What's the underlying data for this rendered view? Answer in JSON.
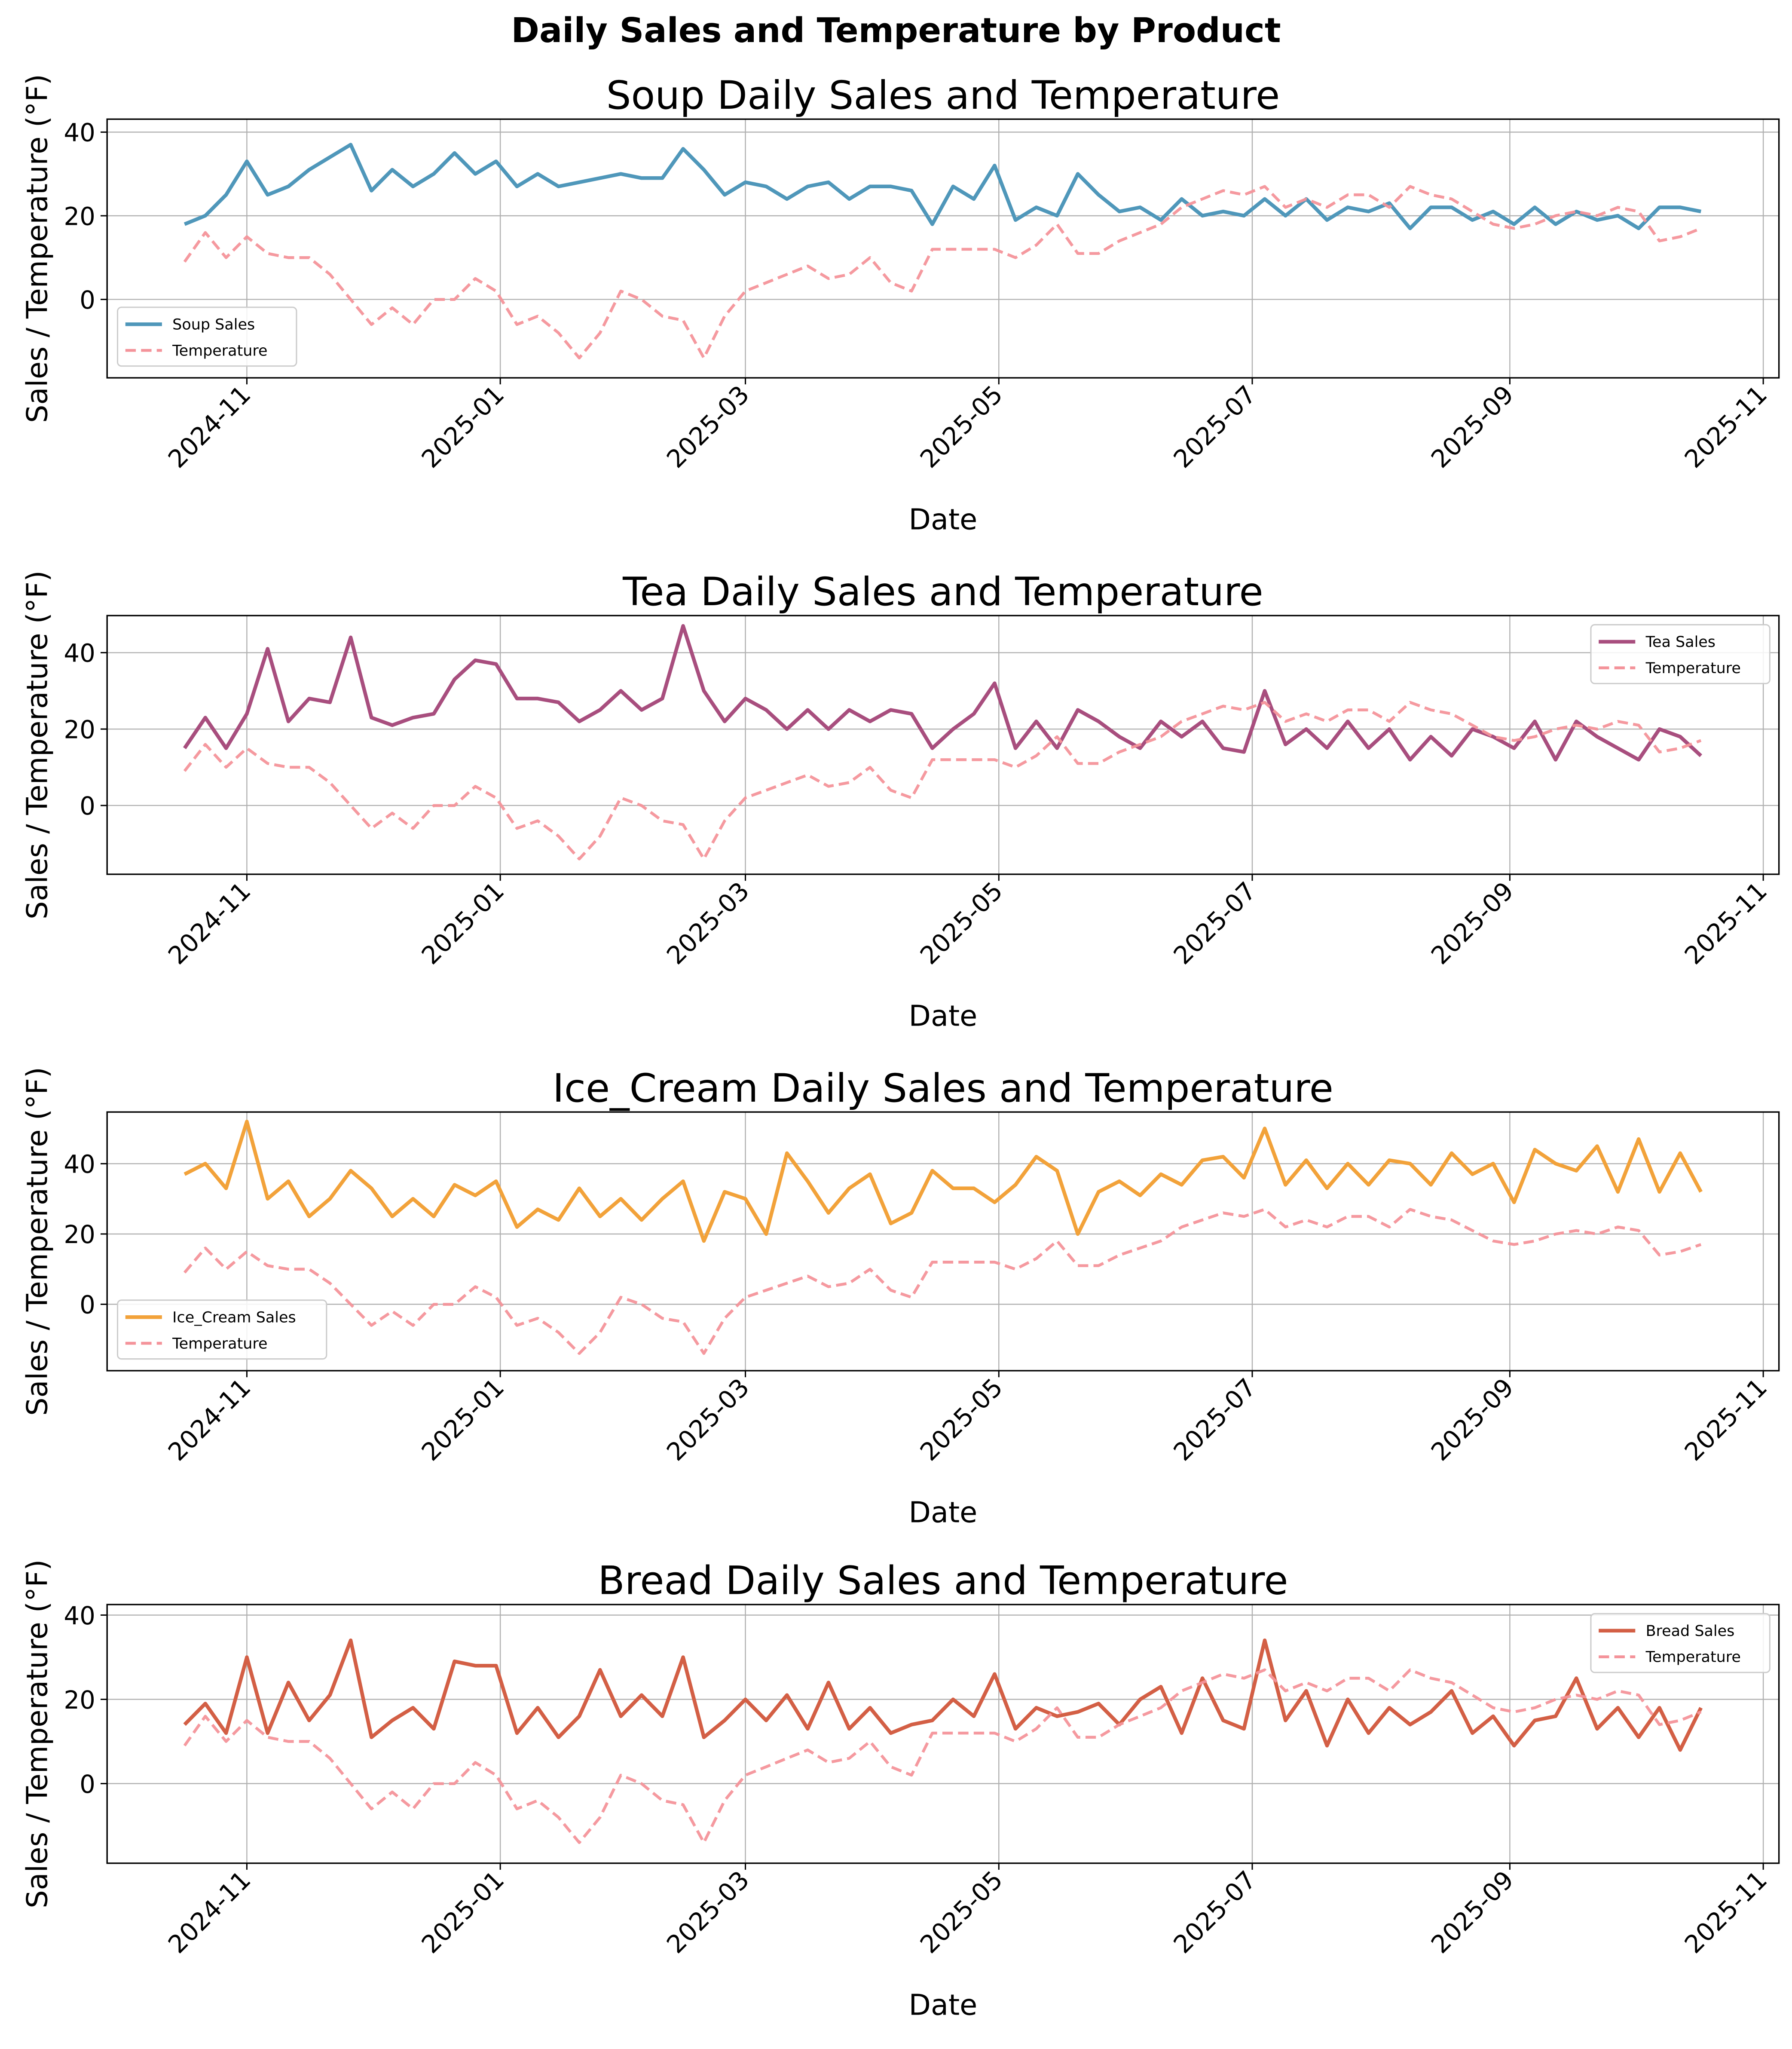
{
  "title": "Daily Sales and Temperature by Product",
  "chart_data": [
    {
      "type": "line",
      "title": "Soup Daily Sales and Temperature",
      "xlabel": "Date",
      "ylabel": "Sales / Temperature (°F)",
      "ylim": [
        -18.75,
        43.1
      ],
      "yticks": [
        0,
        20,
        40
      ],
      "xticks": [
        "2024-11",
        "2025-01",
        "2025-03",
        "2025-05",
        "2025-07",
        "2025-09",
        "2025-11"
      ],
      "grid": true,
      "legend": "lower left",
      "series": [
        {
          "name": "Soup Sales",
          "color": "#4f97ba",
          "style": "solid",
          "values": [
            18,
            20,
            25,
            33,
            25,
            27,
            31,
            34,
            37,
            26,
            31,
            27,
            30,
            35,
            30,
            33,
            27,
            30,
            27,
            28,
            29,
            30,
            29,
            29,
            36,
            31,
            25,
            28,
            27,
            24,
            27,
            28,
            24,
            27,
            27,
            26,
            18,
            27,
            24,
            32,
            19,
            22,
            20,
            30,
            25,
            21,
            22,
            19,
            24,
            20,
            21,
            20,
            24,
            20,
            24,
            19,
            22,
            21,
            23,
            17,
            22,
            22,
            19,
            21,
            18,
            22,
            18,
            21,
            19,
            20,
            17,
            22,
            22,
            21
          ]
        },
        {
          "name": "Temperature",
          "color": "#f4939a",
          "style": "dashed",
          "ref": "temperature"
        }
      ]
    },
    {
      "type": "line",
      "title": "Tea Daily Sales and Temperature",
      "xlabel": "Date",
      "ylabel": "Sales / Temperature (°F)",
      "ylim": [
        -18,
        49.7
      ],
      "yticks": [
        0,
        20,
        40
      ],
      "xticks": [
        "2024-11",
        "2025-01",
        "2025-03",
        "2025-05",
        "2025-07",
        "2025-09",
        "2025-11"
      ],
      "grid": true,
      "legend": "upper right",
      "series": [
        {
          "name": "Tea Sales",
          "color": "#a84e7e",
          "style": "solid",
          "values": [
            15,
            23,
            15,
            24,
            41,
            22,
            28,
            27,
            44,
            23,
            21,
            23,
            24,
            33,
            38,
            37,
            28,
            28,
            27,
            22,
            25,
            30,
            25,
            28,
            47,
            30,
            22,
            28,
            25,
            20,
            25,
            20,
            25,
            22,
            25,
            24,
            15,
            20,
            24,
            32,
            15,
            22,
            15,
            25,
            22,
            18,
            15,
            22,
            18,
            22,
            15,
            14,
            30,
            16,
            20,
            15,
            22,
            15,
            20,
            12,
            18,
            13,
            20,
            18,
            15,
            22,
            12,
            22,
            18,
            15,
            12,
            20,
            18,
            13
          ]
        },
        {
          "name": "Temperature",
          "color": "#f4939a",
          "style": "dashed",
          "ref": "temperature"
        }
      ]
    },
    {
      "type": "line",
      "title": "Ice_Cream Daily Sales and Temperature",
      "xlabel": "Date",
      "ylabel": "Sales / Temperature (°F)",
      "ylim": [
        -18.9,
        54.7
      ],
      "yticks": [
        0,
        20,
        40
      ],
      "xticks": [
        "2024-11",
        "2025-01",
        "2025-03",
        "2025-05",
        "2025-07",
        "2025-09",
        "2025-11"
      ],
      "grid": true,
      "legend": "lower left",
      "series": [
        {
          "name": "Ice_Cream Sales",
          "color": "#f2a23a",
          "style": "solid",
          "values": [
            37,
            40,
            33,
            52,
            30,
            35,
            25,
            30,
            38,
            33,
            25,
            30,
            25,
            34,
            31,
            35,
            22,
            27,
            24,
            33,
            25,
            30,
            24,
            30,
            35,
            18,
            32,
            30,
            20,
            43,
            35,
            26,
            33,
            37,
            23,
            26,
            38,
            33,
            33,
            29,
            34,
            42,
            38,
            20,
            32,
            35,
            31,
            37,
            34,
            41,
            42,
            36,
            50,
            34,
            41,
            33,
            40,
            34,
            41,
            40,
            34,
            43,
            37,
            40,
            29,
            44,
            40,
            38,
            45,
            32,
            47,
            32,
            43,
            32
          ]
        },
        {
          "name": "Temperature",
          "color": "#f4939a",
          "style": "dashed",
          "ref": "temperature"
        }
      ]
    },
    {
      "type": "line",
      "title": "Bread Daily Sales and Temperature",
      "xlabel": "Date",
      "ylabel": "Sales / Temperature (°F)",
      "ylim": [
        -18.9,
        42.5
      ],
      "yticks": [
        0,
        20,
        40
      ],
      "xticks": [
        "2024-11",
        "2025-01",
        "2025-03",
        "2025-05",
        "2025-07",
        "2025-09",
        "2025-11"
      ],
      "grid": true,
      "legend": "upper right",
      "series": [
        {
          "name": "Bread Sales",
          "color": "#d35f45",
          "style": "solid",
          "values": [
            14,
            19,
            12,
            30,
            12,
            24,
            15,
            21,
            34,
            11,
            15,
            18,
            13,
            29,
            28,
            28,
            12,
            18,
            11,
            16,
            27,
            16,
            21,
            16,
            30,
            11,
            15,
            20,
            15,
            21,
            13,
            24,
            13,
            18,
            12,
            14,
            15,
            20,
            16,
            26,
            13,
            18,
            16,
            17,
            19,
            14,
            20,
            23,
            12,
            25,
            15,
            13,
            34,
            15,
            22,
            9,
            20,
            12,
            18,
            14,
            17,
            22,
            12,
            16,
            9,
            15,
            16,
            25,
            13,
            18,
            11,
            18,
            8,
            18
          ]
        },
        {
          "name": "Temperature",
          "color": "#f4939a",
          "style": "dashed",
          "ref": "temperature"
        }
      ]
    }
  ],
  "shared": {
    "dates": [
      "2024-10-17",
      "2024-10-22",
      "2024-10-27",
      "2024-11-01",
      "2024-11-06",
      "2024-11-11",
      "2024-11-16",
      "2024-11-21",
      "2024-11-26",
      "2024-12-01",
      "2024-12-06",
      "2024-12-11",
      "2024-12-16",
      "2024-12-21",
      "2024-12-26",
      "2024-12-31",
      "2025-01-05",
      "2025-01-10",
      "2025-01-15",
      "2025-01-20",
      "2025-01-25",
      "2025-01-30",
      "2025-02-04",
      "2025-02-09",
      "2025-02-14",
      "2025-02-19",
      "2025-02-24",
      "2025-03-01",
      "2025-03-06",
      "2025-03-11",
      "2025-03-16",
      "2025-03-21",
      "2025-03-26",
      "2025-03-31",
      "2025-04-05",
      "2025-04-10",
      "2025-04-15",
      "2025-04-20",
      "2025-04-25",
      "2025-04-30",
      "2025-05-05",
      "2025-05-10",
      "2025-05-15",
      "2025-05-20",
      "2025-05-25",
      "2025-05-30",
      "2025-06-04",
      "2025-06-09",
      "2025-06-14",
      "2025-06-19",
      "2025-06-24",
      "2025-06-29",
      "2025-07-04",
      "2025-07-09",
      "2025-07-14",
      "2025-07-19",
      "2025-07-24",
      "2025-07-29",
      "2025-08-03",
      "2025-08-08",
      "2025-08-13",
      "2025-08-18",
      "2025-08-23",
      "2025-08-28",
      "2025-09-02",
      "2025-09-07",
      "2025-09-12",
      "2025-09-17",
      "2025-09-22",
      "2025-09-27",
      "2025-10-02",
      "2025-10-07",
      "2025-10-12",
      "2025-10-17"
    ],
    "temperature": [
      9,
      16,
      10,
      15,
      11,
      10,
      10,
      6,
      0,
      -6,
      -2,
      -6,
      0,
      0,
      5,
      2,
      -6,
      -4,
      -8,
      -14,
      -8,
      2,
      0,
      -4,
      -5,
      -14,
      -4,
      2,
      4,
      6,
      8,
      5,
      6,
      10,
      4,
      2,
      12,
      12,
      12,
      12,
      10,
      13,
      18,
      11,
      11,
      14,
      16,
      18,
      22,
      24,
      26,
      25,
      27,
      22,
      24,
      22,
      25,
      25,
      22,
      27,
      25,
      24,
      21,
      18,
      17,
      18,
      20,
      21,
      20,
      22,
      21,
      14,
      15,
      17
    ]
  }
}
